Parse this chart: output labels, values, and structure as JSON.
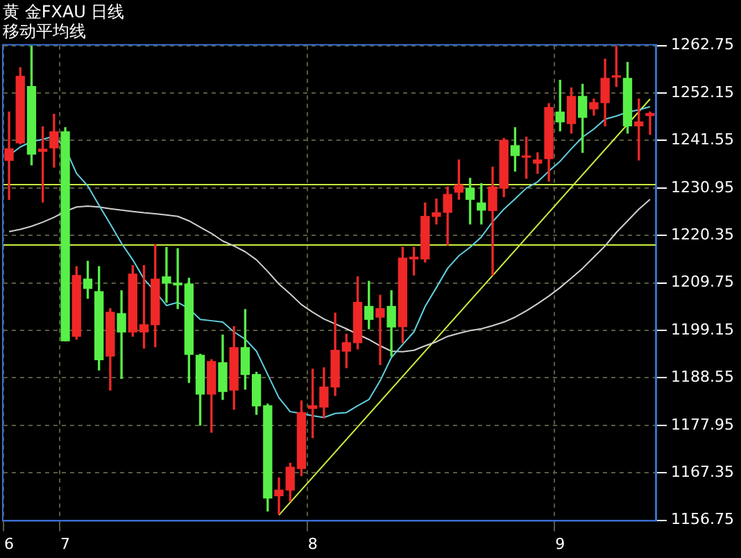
{
  "chart_data": {
    "type": "candlestick",
    "title": "黄 金FXAU 日线",
    "subtitle": "移动平均线",
    "categories": [
      "6",
      null,
      null,
      null,
      null,
      "7",
      null,
      null,
      null,
      null,
      null,
      null,
      null,
      null,
      null,
      null,
      null,
      null,
      null,
      null,
      null,
      null,
      null,
      null,
      null,
      null,
      null,
      "8",
      null,
      null,
      null,
      null,
      null,
      null,
      null,
      null,
      null,
      null,
      null,
      null,
      null,
      null,
      null,
      null,
      null,
      null,
      null,
      null,
      null,
      "9",
      null,
      null,
      null,
      null,
      null,
      null,
      null,
      null
    ],
    "ohlc": [
      [
        1237.1,
        1247.9,
        1228.4,
        1239.7
      ],
      [
        1241.0,
        1257.8,
        1240.8,
        1255.9
      ],
      [
        1253.6,
        1262.6,
        1236.1,
        1238.5
      ],
      [
        1239.1,
        1244.6,
        1227.8,
        1239.6
      ],
      [
        1239.9,
        1247.4,
        1235.6,
        1243.5
      ],
      [
        1243.5,
        1244.4,
        1196.8,
        1196.8
      ],
      [
        1197.8,
        1213.4,
        1197.2,
        1211.4
      ],
      [
        1210.6,
        1214.6,
        1206.3,
        1208.5
      ],
      [
        1207.8,
        1213.4,
        1190.3,
        1192.6
      ],
      [
        1193.4,
        1204.0,
        1185.8,
        1203.2
      ],
      [
        1202.9,
        1208.0,
        1188.4,
        1198.8
      ],
      [
        1198.8,
        1213.6,
        1197.8,
        1211.7
      ],
      [
        1198.8,
        1213.6,
        1195.2,
        1200.4
      ],
      [
        1200.4,
        1218.3,
        1195.5,
        1210.6
      ],
      [
        1211.1,
        1217.7,
        1205.4,
        1209.7
      ],
      [
        1209.7,
        1217.4,
        1204.0,
        1209.3
      ],
      [
        1209.5,
        1210.8,
        1187.5,
        1193.8
      ],
      [
        1193.6,
        1193.8,
        1178.0,
        1184.9
      ],
      [
        1184.9,
        1192.6,
        1176.4,
        1192.2
      ],
      [
        1191.9,
        1198.1,
        1183.7,
        1185.5
      ],
      [
        1185.8,
        1200.0,
        1181.5,
        1195.3
      ],
      [
        1195.3,
        1203.8,
        1186.0,
        1189.3
      ],
      [
        1189.3,
        1189.8,
        1180.4,
        1182.3
      ],
      [
        1182.3,
        1182.7,
        1158.8,
        1161.7
      ],
      [
        1162.2,
        1166.2,
        1158.2,
        1163.5
      ],
      [
        1163.5,
        1169.5,
        1161.0,
        1168.6
      ],
      [
        1168.3,
        1183.4,
        1166.7,
        1180.8
      ],
      [
        1181.7,
        1190.5,
        1175.2,
        1182.3
      ],
      [
        1182.0,
        1190.8,
        1179.6,
        1186.5
      ],
      [
        1186.5,
        1203.0,
        1184.6,
        1194.7
      ],
      [
        1194.5,
        1198.3,
        1190.8,
        1196.4
      ],
      [
        1196.4,
        1211.1,
        1195.0,
        1205.4
      ],
      [
        1204.5,
        1210.1,
        1199.5,
        1201.6
      ],
      [
        1202.1,
        1207.0,
        1191.5,
        1204.0
      ],
      [
        1204.5,
        1208.0,
        1193.4,
        1199.9
      ],
      [
        1200.0,
        1217.7,
        1196.4,
        1215.3
      ],
      [
        1215.1,
        1217.7,
        1211.5,
        1215.5
      ],
      [
        1215.1,
        1227.6,
        1214.4,
        1224.6
      ],
      [
        1224.6,
        1228.5,
        1222.9,
        1225.4
      ],
      [
        1225.5,
        1231.2,
        1218.2,
        1229.5
      ],
      [
        1230.0,
        1237.2,
        1228.4,
        1231.6
      ],
      [
        1230.9,
        1233.1,
        1222.9,
        1228.4
      ],
      [
        1227.6,
        1231.9,
        1222.9,
        1226.0
      ],
      [
        1225.9,
        1235.6,
        1211.5,
        1231.2
      ],
      [
        1230.9,
        1242.0,
        1229.0,
        1241.6
      ],
      [
        1240.4,
        1244.4,
        1234.7,
        1238.2
      ],
      [
        1237.8,
        1242.3,
        1233.1,
        1238.0
      ],
      [
        1236.5,
        1238.8,
        1234.2,
        1237.2
      ],
      [
        1237.5,
        1249.8,
        1232.5,
        1248.9
      ],
      [
        1247.9,
        1255.0,
        1243.7,
        1245.7
      ],
      [
        1245.3,
        1253.3,
        1243.2,
        1251.4
      ],
      [
        1251.4,
        1254.1,
        1238.9,
        1246.7
      ],
      [
        1248.6,
        1250.8,
        1247.2,
        1250.0
      ],
      [
        1250.0,
        1259.7,
        1244.8,
        1255.4
      ],
      [
        1255.7,
        1262.6,
        1253.6,
        1255.9
      ],
      [
        1255.4,
        1259.0,
        1243.2,
        1244.8
      ],
      [
        1244.8,
        1250.8,
        1237.2,
        1245.7
      ],
      [
        1247.1,
        1247.9,
        1242.9,
        1247.6
      ]
    ],
    "colors": [
      "#f02828",
      "#f02828",
      "#58f048",
      "#f02828",
      "#f02828",
      "#58f048",
      "#f02828",
      "#58f048",
      "#58f048",
      "#f02828",
      "#58f048",
      "#f02828",
      "#f02828",
      "#f02828",
      "#58f048",
      "#58f048",
      "#58f048",
      "#58f048",
      "#f02828",
      "#58f048",
      "#f02828",
      "#58f048",
      "#58f048",
      "#58f048",
      "#f02828",
      "#f02828",
      "#f02828",
      "#f02828",
      "#f02828",
      "#f02828",
      "#f02828",
      "#f02828",
      "#58f048",
      "#f02828",
      "#58f048",
      "#f02828",
      "#f02828",
      "#f02828",
      "#f02828",
      "#f02828",
      "#f02828",
      "#58f048",
      "#58f048",
      "#f02828",
      "#f02828",
      "#58f048",
      "#f02828",
      "#f02828",
      "#f02828",
      "#58f048",
      "#f02828",
      "#58f048",
      "#f02828",
      "#f02828",
      "#f02828",
      "#58f048",
      "#f02828",
      "#f02828"
    ],
    "series": [
      {
        "type": "line",
        "color": "#60d0e0",
        "values": [
          1238.2,
          1240.1,
          1241.3,
          1241.8,
          1242.5,
          1239.9,
          1234.2,
          1231.4,
          1227.1,
          1222.9,
          1218.6,
          1214.9,
          1210.6,
          1207.8,
          1204.7,
          1205.4,
          1204.0,
          1201.6,
          1201.3,
          1201.0,
          1198.8,
          1197.2,
          1194.5,
          1189.3,
          1184.1,
          1181.0,
          1180.6,
          1180.1,
          1179.7,
          1180.6,
          1180.8,
          1182.3,
          1183.7,
          1187.9,
          1193.1,
          1196.0,
          1198.8,
          1204.5,
          1208.7,
          1213.0,
          1215.8,
          1217.7,
          1220.0,
          1223.4,
          1226.2,
          1228.5,
          1230.9,
          1232.3,
          1234.7,
          1236.9,
          1239.7,
          1242.3,
          1244.1,
          1246.3,
          1247.0,
          1247.9,
          1248.4,
          1249.1
        ]
      },
      {
        "type": "line",
        "color": "#d0d0d0",
        "values": [
          1221.2,
          1221.7,
          1222.4,
          1223.3,
          1224.4,
          1225.7,
          1226.7,
          1226.9,
          1226.7,
          1226.3,
          1226.0,
          1225.7,
          1225.4,
          1225.2,
          1224.9,
          1224.6,
          1223.6,
          1222.2,
          1220.8,
          1219.1,
          1218.0,
          1216.7,
          1214.9,
          1212.3,
          1209.5,
          1207.3,
          1204.9,
          1203.2,
          1201.7,
          1200.6,
          1199.5,
          1198.3,
          1197.1,
          1195.7,
          1194.5,
          1194.4,
          1194.7,
          1195.7,
          1196.6,
          1197.8,
          1198.5,
          1199.1,
          1199.5,
          1200.2,
          1201.0,
          1202.1,
          1203.5,
          1205.1,
          1206.8,
          1208.7,
          1210.8,
          1213.0,
          1215.5,
          1218.0,
          1221.0,
          1223.6,
          1226.2,
          1228.4
        ]
      },
      {
        "type": "line",
        "color": "#c8f040",
        "values": [
          null,
          null,
          null,
          null,
          null,
          null,
          null,
          null,
          null,
          null,
          null,
          null,
          null,
          null,
          null,
          null,
          null,
          null,
          null,
          null,
          null,
          null,
          null,
          null,
          1157.9,
          null,
          null,
          null,
          null,
          null,
          null,
          null,
          null,
          null,
          null,
          null,
          null,
          null,
          null,
          null,
          null,
          null,
          null,
          null,
          null,
          null,
          null,
          null,
          null,
          null,
          null,
          null,
          null,
          null,
          null,
          null,
          null,
          1250.8
        ]
      }
    ],
    "ref_lines": [
      {
        "axis": "y",
        "value": 1231.7,
        "color": "#c8f040"
      },
      {
        "axis": "y",
        "value": 1218.2,
        "color": "#c8f040"
      }
    ],
    "ylim": [
      1156.75,
      1262.75
    ],
    "yticks": [
      1156.75,
      1167.35,
      1177.95,
      1188.55,
      1199.15,
      1209.75,
      1220.35,
      1230.95,
      1241.55,
      1252.15,
      1262.75
    ],
    "grid": true,
    "legend": false
  }
}
